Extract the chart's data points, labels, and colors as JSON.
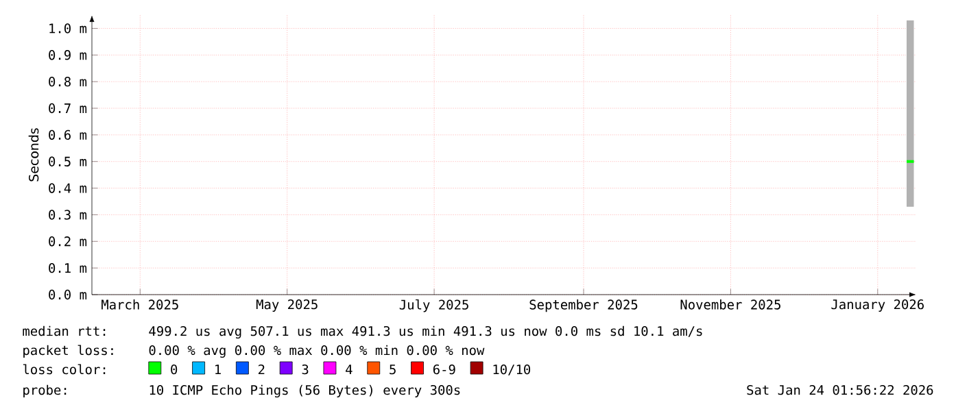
{
  "chart_data": {
    "type": "line",
    "ylabel": "Seconds",
    "x": [
      "2026-01-13",
      "2026-01-16"
    ],
    "xlim": [
      "2025-02-09",
      "2026-01-17"
    ],
    "xticks": [
      {
        "value": "2025-03-01",
        "label": "March 2025"
      },
      {
        "value": "2025-05-01",
        "label": "May 2025"
      },
      {
        "value": "2025-07-01",
        "label": "July 2025"
      },
      {
        "value": "2025-09-01",
        "label": "September 2025"
      },
      {
        "value": "2025-11-01",
        "label": "November 2025"
      },
      {
        "value": "2026-01-01",
        "label": "January 2026"
      }
    ],
    "ylim": [
      0,
      1.05
    ],
    "yticks": [
      {
        "value": 0,
        "label": "0.0 m"
      },
      {
        "value": 0.1,
        "label": "0.1 m"
      },
      {
        "value": 0.2,
        "label": "0.2 m"
      },
      {
        "value": 0.3,
        "label": "0.3 m"
      },
      {
        "value": 0.4,
        "label": "0.4 m"
      },
      {
        "value": 0.5,
        "label": "0.5 m"
      },
      {
        "value": 0.6,
        "label": "0.6 m"
      },
      {
        "value": 0.7,
        "label": "0.7 m"
      },
      {
        "value": 0.8,
        "label": "0.8 m"
      },
      {
        "value": 0.9,
        "label": "0.9 m"
      },
      {
        "value": 1.0,
        "label": "1.0 m"
      }
    ],
    "grid": true,
    "legend": "bottom",
    "legend_title": "loss color:",
    "series": [
      {
        "name": "0",
        "color": "#00ff00",
        "values": [
          0.5,
          0.5
        ],
        "lower": [
          0.33,
          0.33
        ],
        "upper": [
          1.03,
          1.03
        ]
      },
      {
        "name": "1",
        "color": "#00b8ff",
        "values": [
          null,
          null
        ]
      },
      {
        "name": "2",
        "color": "#0059ff",
        "values": [
          null,
          null
        ]
      },
      {
        "name": "3",
        "color": "#7e00ff",
        "values": [
          null,
          null
        ]
      },
      {
        "name": "4",
        "color": "#ff00ff",
        "values": [
          null,
          null
        ]
      },
      {
        "name": "5",
        "color": "#ff5500",
        "values": [
          null,
          null
        ]
      },
      {
        "name": "6-9",
        "color": "#ff0000",
        "values": [
          null,
          null
        ]
      },
      {
        "name": "10/10",
        "color": "#a10000",
        "values": [
          null,
          null
        ]
      }
    ],
    "annotations": [
      "median rtt:",
      "499.2 us avg  507.1 us max  491.3 us min  491.3 us now  0.0 ms sd  10.1   am/s",
      "packet loss:",
      "0.00 % avg  0.00 % max  0.00 % min  0.00 % now",
      "probe:",
      "10 ICMP Echo Pings (56 Bytes) every 300s",
      "Sat Jan 24 01:56:22 2026"
    ]
  }
}
